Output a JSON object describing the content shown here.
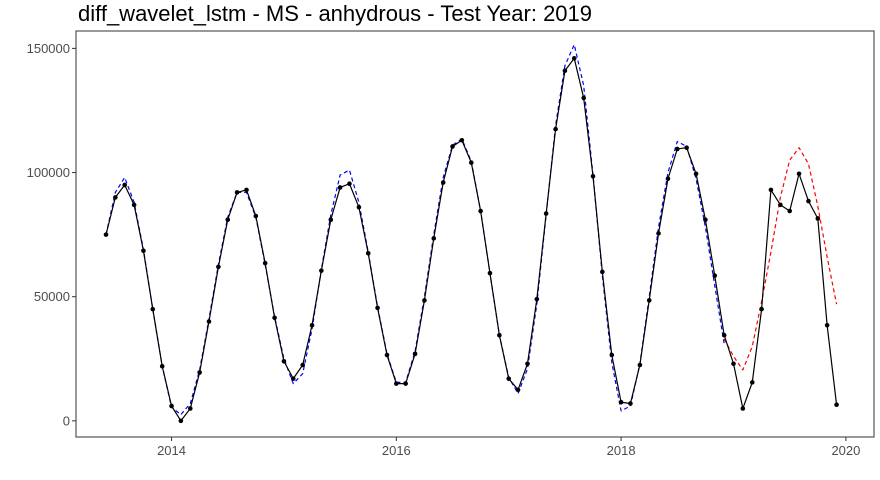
{
  "chart_data": {
    "type": "line",
    "title": "diff_wavelet_lstm - MS - anhydrous - Test Year: 2019",
    "xlabel": "",
    "ylabel": "",
    "xlim": [
      2013.15,
      2020.25
    ],
    "ylim": [
      -6500,
      157000
    ],
    "x_ticks": [
      2014,
      2016,
      2018,
      2020
    ],
    "x_tick_labels": [
      "2014",
      "2016",
      "2018",
      "2020"
    ],
    "y_ticks": [
      0,
      50000,
      100000,
      150000
    ],
    "y_tick_labels": [
      "0",
      "50000",
      "100000",
      "150000"
    ],
    "grid": false,
    "legend": "none",
    "series": [
      {
        "style": "solid-with-points",
        "color": "#000000",
        "x": [
          2013.417,
          2013.5,
          2013.583,
          2013.667,
          2013.75,
          2013.833,
          2013.917,
          2014.0,
          2014.083,
          2014.167,
          2014.25,
          2014.333,
          2014.417,
          2014.5,
          2014.583,
          2014.667,
          2014.75,
          2014.833,
          2014.917,
          2015.0,
          2015.083,
          2015.167,
          2015.25,
          2015.333,
          2015.417,
          2015.5,
          2015.583,
          2015.667,
          2015.75,
          2015.833,
          2015.917,
          2016.0,
          2016.083,
          2016.167,
          2016.25,
          2016.333,
          2016.417,
          2016.5,
          2016.583,
          2016.667,
          2016.75,
          2016.833,
          2016.917,
          2017.0,
          2017.083,
          2017.167,
          2017.25,
          2017.333,
          2017.417,
          2017.5,
          2017.583,
          2017.667,
          2017.75,
          2017.833,
          2017.917,
          2018.0,
          2018.083,
          2018.167,
          2018.25,
          2018.333,
          2018.417,
          2018.5,
          2018.583,
          2018.667,
          2018.75,
          2018.833,
          2018.917,
          2019.0,
          2019.083,
          2019.167,
          2019.25,
          2019.333,
          2019.417,
          2019.5,
          2019.583,
          2019.667,
          2019.75,
          2019.833,
          2019.917
        ],
        "values": [
          75000,
          90000,
          95000,
          87000,
          68500,
          45000,
          22000,
          6000,
          0,
          5000,
          19500,
          40000,
          62000,
          81000,
          92000,
          93000,
          82500,
          63500,
          41500,
          24000,
          17000,
          22500,
          38500,
          60500,
          81000,
          94000,
          95500,
          86000,
          67500,
          45500,
          26500,
          15000,
          15000,
          27000,
          48500,
          73500,
          96000,
          110500,
          113000,
          104000,
          84500,
          59500,
          34500,
          17000,
          12500,
          23000,
          49000,
          83500,
          117500,
          141000,
          146000,
          130000,
          98500,
          60000,
          26500,
          7500,
          7000,
          22500,
          48500,
          75500,
          97500,
          109500,
          110000,
          99500,
          81000,
          58500,
          34500,
          23000,
          5000,
          15500,
          45000,
          93000,
          87000,
          84500,
          99500,
          88500,
          81500,
          38500,
          6500
        ]
      },
      {
        "style": "dashed",
        "color": "#0000ff",
        "x": [
          2013.417,
          2013.5,
          2013.583,
          2013.667,
          2013.75,
          2013.833,
          2013.917,
          2014.0,
          2014.083,
          2014.167,
          2014.25,
          2014.333,
          2014.417,
          2014.5,
          2014.583,
          2014.667,
          2014.75,
          2014.833,
          2014.917,
          2015.0,
          2015.083,
          2015.167,
          2015.25,
          2015.333,
          2015.417,
          2015.5,
          2015.583,
          2015.667,
          2015.75,
          2015.833,
          2015.917,
          2016.0,
          2016.083,
          2016.167,
          2016.25,
          2016.333,
          2016.417,
          2016.5,
          2016.583,
          2016.667,
          2016.75,
          2016.833,
          2016.917,
          2017.0,
          2017.083,
          2017.167,
          2017.25,
          2017.333,
          2017.417,
          2017.5,
          2017.583,
          2017.667,
          2017.75,
          2017.833,
          2017.917,
          2018.0,
          2018.083,
          2018.167,
          2018.25,
          2018.333,
          2018.417,
          2018.5,
          2018.583,
          2018.667,
          2018.75,
          2018.833,
          2018.917
        ],
        "values": [
          75000,
          92000,
          98000,
          88000,
          69000,
          45000,
          22000,
          5500,
          2500,
          7000,
          20500,
          41000,
          63000,
          82000,
          92000,
          92000,
          82000,
          63000,
          42000,
          25000,
          15000,
          19000,
          37000,
          61000,
          83000,
          99000,
          101000,
          88000,
          68000,
          46000,
          27000,
          15500,
          15500,
          28000,
          50000,
          75000,
          98000,
          111000,
          113500,
          104500,
          84500,
          59500,
          34500,
          17500,
          11000,
          21000,
          47000,
          83000,
          119000,
          143000,
          151500,
          135000,
          99000,
          58500,
          23500,
          4000,
          6000,
          23000,
          50000,
          78000,
          100000,
          112500,
          110500,
          97500,
          78000,
          54500,
          31000
        ]
      },
      {
        "style": "dashed",
        "color": "#ff0000",
        "x": [
          2018.917,
          2019.0,
          2019.083,
          2019.167,
          2019.25,
          2019.333,
          2019.417,
          2019.5,
          2019.583,
          2019.667,
          2019.75,
          2019.833,
          2019.917
        ],
        "values": [
          33000,
          26000,
          20500,
          30000,
          48000,
          68000,
          90000,
          105000,
          110000,
          103500,
          86500,
          66000,
          47000
        ]
      }
    ]
  }
}
